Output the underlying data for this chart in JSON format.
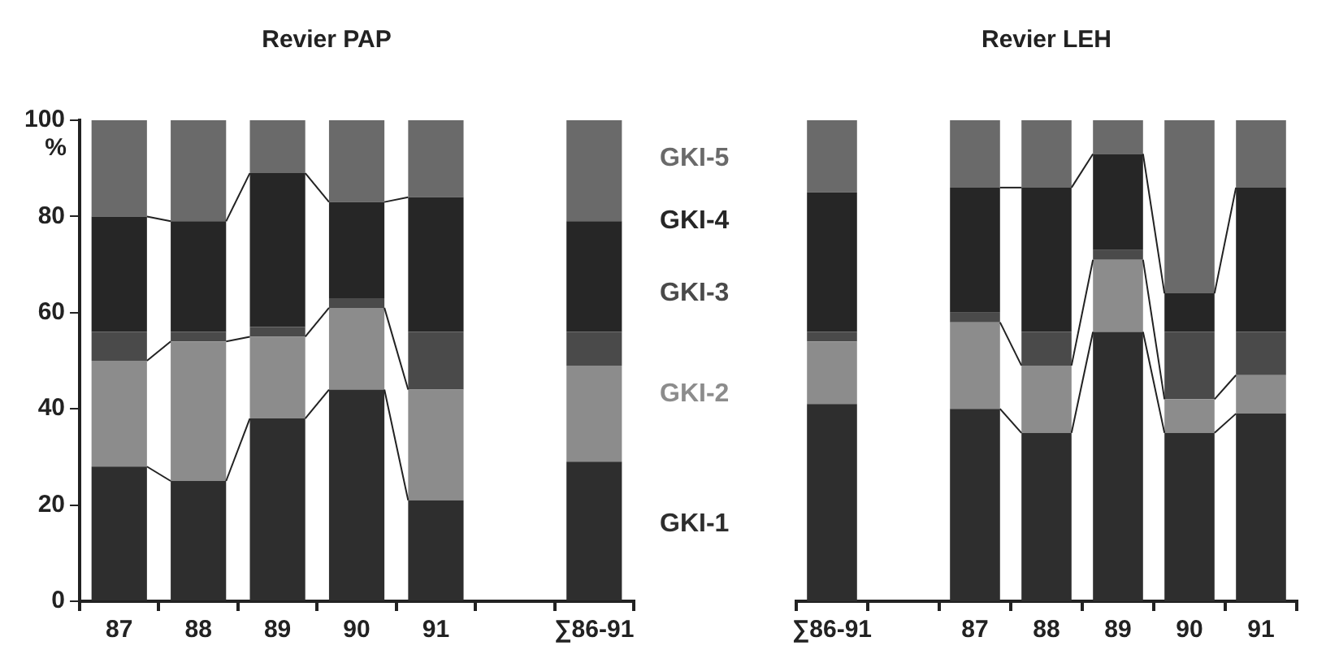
{
  "chart_data": [
    {
      "type": "bar",
      "title": "Revier PAP",
      "ylabel": "%",
      "stacked": true,
      "categories": [
        "87",
        "88",
        "89",
        "90",
        "91",
        null,
        "∑86-91"
      ],
      "ylim": [
        0,
        100
      ],
      "yticks": [
        0,
        20,
        40,
        60,
        80,
        100
      ],
      "grid": false,
      "legend": false,
      "series": [
        {
          "color": "#2e2e2e",
          "values": [
            28,
            25,
            38,
            44,
            21,
            null,
            29
          ]
        },
        {
          "color": "#8c8c8c",
          "values": [
            22,
            29,
            17,
            17,
            23,
            null,
            20
          ]
        },
        {
          "color": "#4a4a4a",
          "values": [
            6,
            2,
            2,
            2,
            12,
            null,
            7
          ]
        },
        {
          "color": "#262626",
          "values": [
            24,
            23,
            32,
            20,
            28,
            null,
            23
          ]
        },
        {
          "color": "#6a6a6a",
          "values": [
            20,
            21,
            11,
            17,
            16,
            null,
            21
          ]
        }
      ]
    },
    {
      "type": "bar",
      "title": "Revier LEH",
      "stacked": true,
      "categories": [
        "∑86-91",
        null,
        "87",
        "88",
        "89",
        "90",
        "91"
      ],
      "ylim": [
        0,
        100
      ],
      "tick_labels": "x",
      "grid": false,
      "legend": false,
      "series": [
        {
          "name": "GKI-1",
          "color": "#2e2e2e",
          "values": [
            41,
            null,
            40,
            35,
            56,
            35,
            39
          ]
        },
        {
          "name": "GKI-2",
          "color": "#8c8c8c",
          "values": [
            13,
            null,
            18,
            14,
            15,
            7,
            8
          ]
        },
        {
          "name": "GKI-3",
          "color": "#4a4a4a",
          "values": [
            2,
            null,
            2,
            7,
            2,
            14,
            9
          ]
        },
        {
          "name": "GKI-4",
          "color": "#262626",
          "values": [
            29,
            null,
            26,
            30,
            20,
            8,
            30
          ]
        },
        {
          "name": "GKI-5",
          "color": "#6a6a6a",
          "values": [
            15,
            null,
            14,
            14,
            7,
            36,
            14
          ]
        }
      ]
    }
  ]
}
